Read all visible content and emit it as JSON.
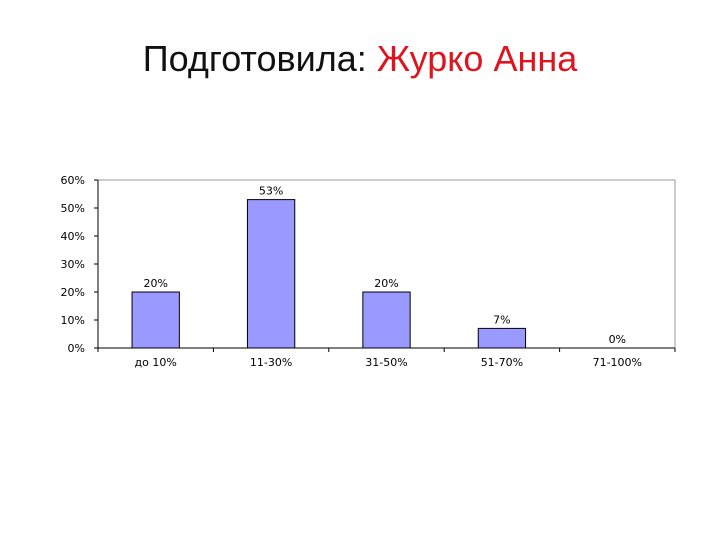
{
  "slide": {
    "title_prefix": "Подготовила: ",
    "title_name": "Журко Анна",
    "accent_color": "#e0141e"
  },
  "chart_data": {
    "type": "bar",
    "categories": [
      "до 10%",
      "11-30%",
      "31-50%",
      "51-70%",
      "71-100%"
    ],
    "values": [
      20,
      53,
      20,
      7,
      0
    ],
    "data_labels": [
      "20%",
      "53%",
      "20%",
      "7%",
      "0%"
    ],
    "ylim": [
      0,
      60
    ],
    "yticks": [
      0,
      10,
      20,
      30,
      40,
      50,
      60
    ],
    "ytick_labels": [
      "0%",
      "10%",
      "20%",
      "30%",
      "40%",
      "50%",
      "60%"
    ],
    "bar_color": "#9999ff",
    "grid": false,
    "legend": "none"
  }
}
